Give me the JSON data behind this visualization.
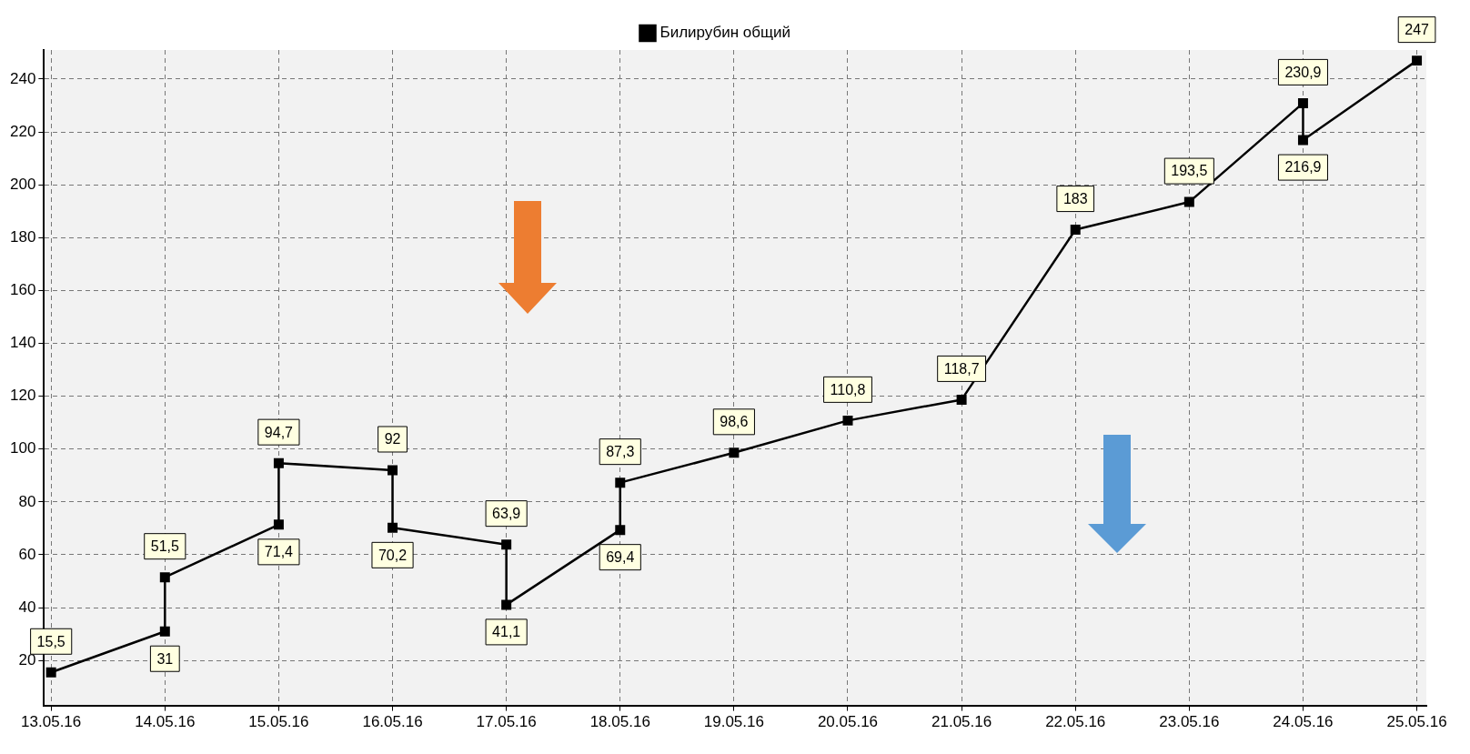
{
  "chart_data": {
    "type": "line",
    "x": [
      "--05-13",
      "--05-14",
      "--05-14",
      "--05-15",
      "--05-15",
      "--05-16",
      "--05-16",
      "--05-17",
      "--05-17",
      "--05-18",
      "--05-18",
      "--05-19",
      "--05-20",
      "--05-21",
      "--05-22",
      "--05-23",
      "--05-24",
      "--05-24",
      "--05-25"
    ],
    "series": [
      {
        "name": "Билирубин общий",
        "color": "#000000",
        "values": [
          15.5,
          31,
          51.5,
          71.4,
          94.7,
          92,
          70.2,
          63.9,
          41.1,
          69.4,
          87.3,
          98.6,
          110.8,
          118.7,
          183,
          193.5,
          230.9,
          216.9,
          247
        ],
        "value_labels": [
          "15,5",
          "31",
          "51,5",
          "71,4",
          "94,7",
          "92",
          "70,2",
          "63,9",
          "41,1",
          "69,4",
          "87,3",
          "98,6",
          "110,8",
          "118,7",
          "183",
          "193,5",
          "230,9",
          "216,9",
          "247"
        ]
      }
    ],
    "xlim": [
      "--05-12T22:30",
      "--05-25T02:00"
    ],
    "xticks": [
      {
        "value": "--05-13",
        "label": "13.05.16"
      },
      {
        "value": "--05-14",
        "label": "14.05.16"
      },
      {
        "value": "--05-15",
        "label": "15.05.16"
      },
      {
        "value": "--05-16",
        "label": "16.05.16"
      },
      {
        "value": "--05-17",
        "label": "17.05.16"
      },
      {
        "value": "--05-18",
        "label": "18.05.16"
      },
      {
        "value": "--05-19",
        "label": "19.05.16"
      },
      {
        "value": "--05-20",
        "label": "20.05.16"
      },
      {
        "value": "--05-21",
        "label": "21.05.16"
      },
      {
        "value": "--05-22",
        "label": "22.05.16"
      },
      {
        "value": "--05-23",
        "label": "23.05.16"
      },
      {
        "value": "--05-24",
        "label": "24.05.16"
      },
      {
        "value": "--05-25",
        "label": "25.05.16"
      }
    ],
    "ylim": [
      3,
      251
    ],
    "yticks": [
      20,
      40,
      60,
      80,
      100,
      120,
      140,
      160,
      180,
      200,
      220,
      240
    ],
    "grid": true,
    "legend": "top",
    "marker": "square",
    "line_style": "solid"
  }
}
